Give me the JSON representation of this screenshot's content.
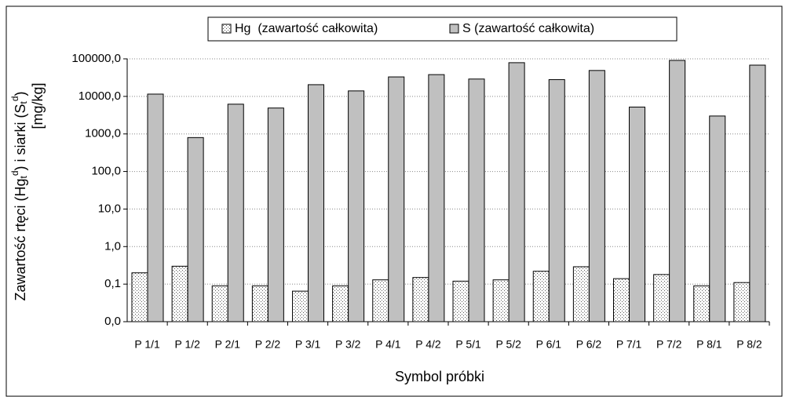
{
  "chart_data": {
    "type": "bar",
    "y_label": [
      "Zawartość rtęci (Hg",
      "t",
      "d",
      ") i siarki (S",
      "t",
      "d",
      ")"
    ],
    "y_label_unit": "[mg/kg]",
    "x_label": "Symbol próbki",
    "categories": [
      "P 1/1",
      "P 1/2",
      "P 2/1",
      "P 2/2",
      "P 3/1",
      "P 3/2",
      "P 4/1",
      "P 4/2",
      "P 5/1",
      "P 5/2",
      "P 6/1",
      "P 6/2",
      "P 7/1",
      "P 7/2",
      "P 8/1",
      "P 8/2"
    ],
    "series": [
      {
        "name": "Hg  (zawartość całkowita)",
        "color": "#ffffff",
        "pattern": "dotted",
        "values": [
          0.2,
          0.3,
          0.09,
          0.09,
          0.065,
          0.09,
          0.13,
          0.15,
          0.12,
          0.13,
          0.22,
          0.29,
          0.14,
          0.18,
          0.09,
          0.11
        ]
      },
      {
        "name": "S (zawartość całkowita)",
        "color": "#c0c0c0",
        "values": [
          11500,
          800,
          6200,
          4900,
          20500,
          14000,
          33000,
          38000,
          29000,
          79000,
          28000,
          49000,
          5200,
          91000,
          3000,
          68000
        ]
      }
    ],
    "log_scale": true,
    "ylim": [
      0.01,
      100000
    ],
    "yticks": [
      {
        "value": 0.01,
        "label": "0,0"
      },
      {
        "value": 0.1,
        "label": "0,1"
      },
      {
        "value": 1,
        "label": "1,0"
      },
      {
        "value": 10,
        "label": "10,0"
      },
      {
        "value": 100,
        "label": "100,0"
      },
      {
        "value": 1000,
        "label": "1000,0"
      },
      {
        "value": 10000,
        "label": "10000,0"
      },
      {
        "value": 100000,
        "label": "100000,0"
      }
    ],
    "grid": true,
    "legend": "top"
  }
}
